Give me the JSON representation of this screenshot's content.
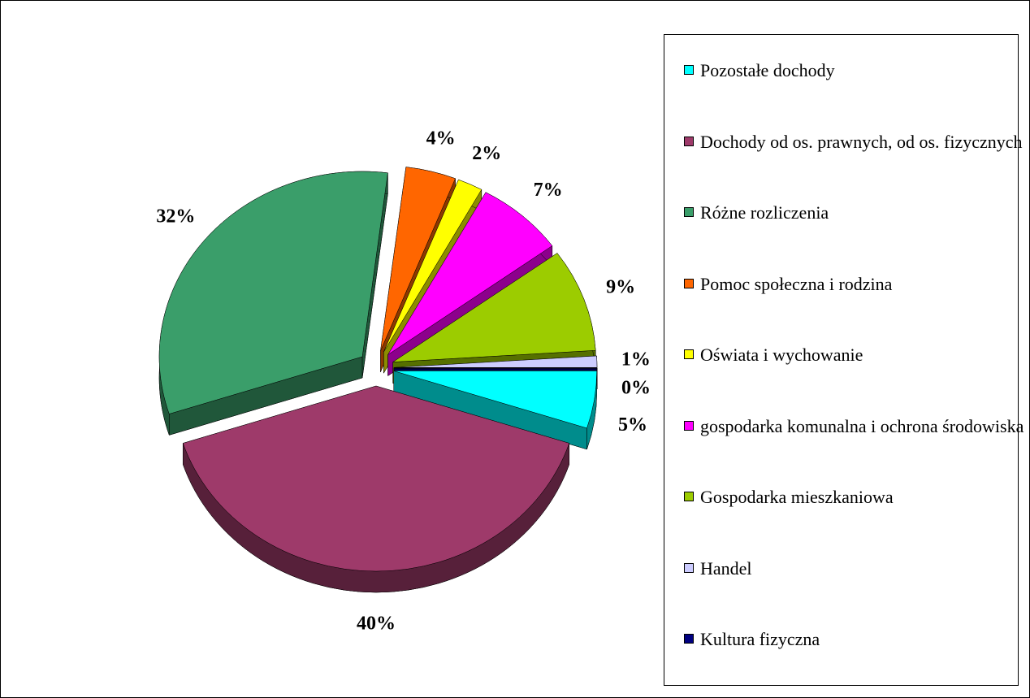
{
  "chart_data": {
    "type": "pie3d",
    "categories": [
      "Pozostałe dochody",
      "Dochody od os. prawnych, od os. fizycznych",
      "Różne rozliczenia",
      "Pomoc społeczna i rodzina",
      "Oświata i wychowanie",
      "gospodarka komunalna i ochrona środowiska",
      "Gospodarka mieszkaniowa",
      "Handel",
      "Kultura fizyczna"
    ],
    "values": [
      5,
      40,
      32,
      4,
      2,
      7,
      9,
      1,
      0
    ],
    "value_labels": [
      "5%",
      "40%",
      "32%",
      "4%",
      "2%",
      "7%",
      "9%",
      "1%",
      "0%"
    ],
    "colors": [
      "#00ffff",
      "#9e3a6a",
      "#3a9e6a",
      "#ff6600",
      "#ffff00",
      "#ff00ff",
      "#9ccc00",
      "#ccccff",
      "#000080"
    ],
    "legend": "right"
  }
}
